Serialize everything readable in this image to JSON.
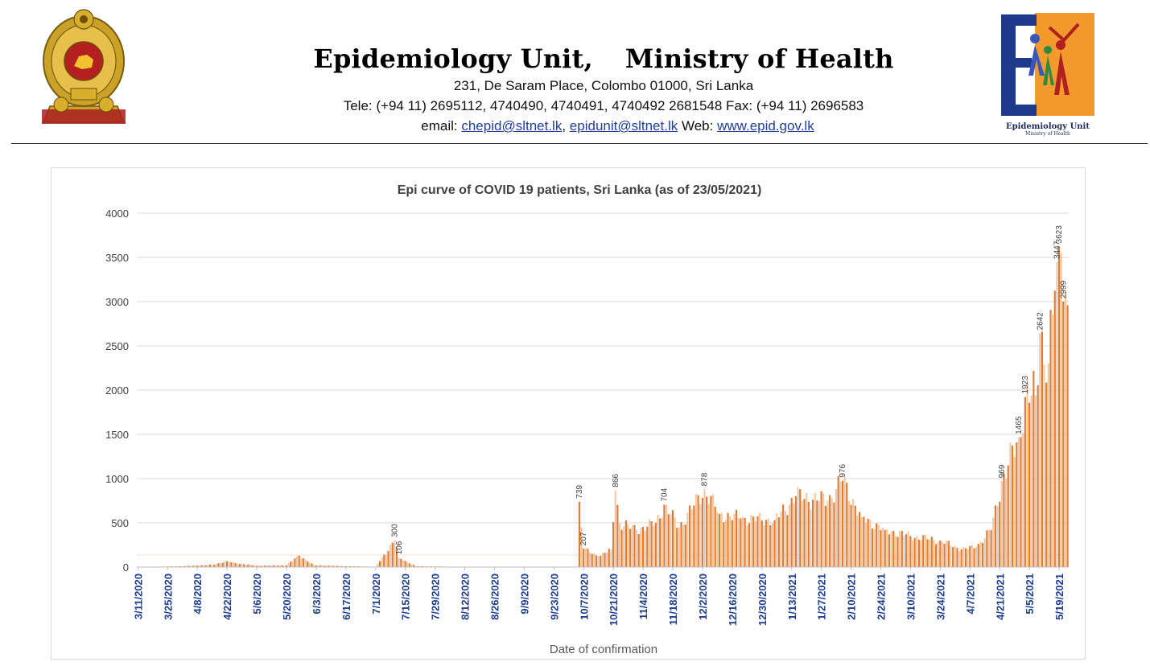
{
  "header": {
    "org_name_left": "Epidemiology Unit,",
    "org_name_right": "Ministry of Health",
    "address": "231, De Saram Place, Colombo 01000, Sri Lanka",
    "tele": "Tele: (+94 11) 2695112, 4740490, 4740491, 4740492 2681548  Fax: (+94 11) 2696583",
    "email_prefix": "email: ",
    "email_1": "chepid@sltnet.lk",
    "email_sep": ", ",
    "email_2": "epidunit@sltnet.lk",
    "web_prefix": " Web: ",
    "web": "www.epid.gov.lk",
    "logo_caption": "Epidemiology Unit",
    "logo_subcaption": "Ministry of Health"
  },
  "colors": {
    "bar_orange": "#e07b32",
    "bar_light": "#f2c8a7",
    "axis_tick_label": "#1f3e8c",
    "grid": "#d9d9d9",
    "title_text": "#404040",
    "link": "#1f3f9a",
    "logo_blue": "#1f3a8a",
    "logo_orange": "#f29a2e",
    "emblem_gold": "#c9a227",
    "emblem_red": "#b3201f"
  },
  "chart_data": {
    "type": "bar",
    "title": "Epi curve of COVID 19 patients, Sri Lanka  (as of 23/05/2021)",
    "xlabel": "Date of confirmation",
    "ylabel": "",
    "ylim": [
      0,
      4000
    ],
    "yticks": [
      0,
      500,
      1000,
      1500,
      2000,
      2500,
      3000,
      3500,
      4000
    ],
    "grid": true,
    "legend": "none",
    "x_tick_labels": [
      "3/11/2020",
      "3/25/2020",
      "4/8/2020",
      "4/22/2020",
      "5/6/2020",
      "5/20/2020",
      "6/3/2020",
      "6/17/2020",
      "7/1/2020",
      "7/15/2020",
      "7/29/2020",
      "8/12/2020",
      "8/26/2020",
      "9/9/2020",
      "9/23/2020",
      "10/7/2020",
      "10/21/2020",
      "11/4/2020",
      "11/18/2020",
      "12/2/2020",
      "12/16/2020",
      "12/30/2020",
      "1/13/2021",
      "1/27/2021",
      "2/10/2021",
      "2/24/2021",
      "3/10/2021",
      "3/24/2021",
      "4/7/2021",
      "4/21/2021",
      "5/5/2021",
      "5/19/2021"
    ],
    "start_date": "2020-03-11",
    "end_date": "2021-05-23",
    "key_points": [
      {
        "date": "2020-03-11",
        "value": 1
      },
      {
        "date": "2020-04-01",
        "value": 10
      },
      {
        "date": "2020-04-15",
        "value": 25
      },
      {
        "date": "2020-04-22",
        "value": 65
      },
      {
        "date": "2020-04-27",
        "value": 40
      },
      {
        "date": "2020-05-06",
        "value": 15
      },
      {
        "date": "2020-05-20",
        "value": 20
      },
      {
        "date": "2020-05-26",
        "value": 130
      },
      {
        "date": "2020-06-02",
        "value": 20
      },
      {
        "date": "2020-06-17",
        "value": 10
      },
      {
        "date": "2020-07-01",
        "value": 5
      },
      {
        "date": "2020-07-10",
        "value": 300
      },
      {
        "date": "2020-07-12",
        "value": 106
      },
      {
        "date": "2020-07-20",
        "value": 10
      },
      {
        "date": "2020-08-12",
        "value": 3
      },
      {
        "date": "2020-09-23",
        "value": 2
      },
      {
        "date": "2020-10-04",
        "value": 3
      },
      {
        "date": "2020-10-05",
        "value": 739
      },
      {
        "date": "2020-10-07",
        "value": 207
      },
      {
        "date": "2020-10-14",
        "value": 120
      },
      {
        "date": "2020-10-20",
        "value": 200
      },
      {
        "date": "2020-10-22",
        "value": 866
      },
      {
        "date": "2020-10-24",
        "value": 500
      },
      {
        "date": "2020-11-01",
        "value": 420
      },
      {
        "date": "2020-11-10",
        "value": 500
      },
      {
        "date": "2020-11-14",
        "value": 704
      },
      {
        "date": "2020-11-21",
        "value": 450
      },
      {
        "date": "2020-12-03",
        "value": 878
      },
      {
        "date": "2020-12-10",
        "value": 600
      },
      {
        "date": "2020-12-20",
        "value": 550
      },
      {
        "date": "2021-01-05",
        "value": 530
      },
      {
        "date": "2021-01-15",
        "value": 800
      },
      {
        "date": "2021-01-30",
        "value": 750
      },
      {
        "date": "2021-02-06",
        "value": 976
      },
      {
        "date": "2021-02-15",
        "value": 560
      },
      {
        "date": "2021-02-26",
        "value": 420
      },
      {
        "date": "2021-03-10",
        "value": 350
      },
      {
        "date": "2021-03-24",
        "value": 300
      },
      {
        "date": "2021-04-03",
        "value": 200
      },
      {
        "date": "2021-04-10",
        "value": 230
      },
      {
        "date": "2021-04-17",
        "value": 420
      },
      {
        "date": "2021-04-22",
        "value": 969
      },
      {
        "date": "2021-04-30",
        "value": 1465
      },
      {
        "date": "2021-05-03",
        "value": 1923
      },
      {
        "date": "2021-05-08",
        "value": 1939
      },
      {
        "date": "2021-05-10",
        "value": 2642
      },
      {
        "date": "2021-05-14",
        "value": 2300
      },
      {
        "date": "2021-05-18",
        "value": 3447
      },
      {
        "date": "2021-05-19",
        "value": 3623
      },
      {
        "date": "2021-05-20",
        "value": 3547
      },
      {
        "date": "2021-05-21",
        "value": 2999
      },
      {
        "date": "2021-05-23",
        "value": 2959
      }
    ],
    "data_labels": [
      {
        "date": "2020-07-10",
        "label": "300"
      },
      {
        "date": "2020-07-12",
        "label": "106"
      },
      {
        "date": "2020-10-05",
        "label": "739"
      },
      {
        "date": "2020-10-07",
        "label": "207"
      },
      {
        "date": "2020-10-22",
        "label": "866"
      },
      {
        "date": "2020-11-14",
        "label": "704"
      },
      {
        "date": "2020-12-03",
        "label": "878"
      },
      {
        "date": "2021-02-06",
        "label": "976"
      },
      {
        "date": "2021-04-22",
        "label": "969"
      },
      {
        "date": "2021-04-30",
        "label": "1465"
      },
      {
        "date": "2021-05-03",
        "label": "1923"
      },
      {
        "date": "2021-05-10",
        "label": "2642"
      },
      {
        "date": "2021-05-19",
        "label": "3623"
      },
      {
        "date": "2021-05-18",
        "label": "3447"
      },
      {
        "date": "2021-05-21",
        "label": "2999"
      }
    ]
  }
}
